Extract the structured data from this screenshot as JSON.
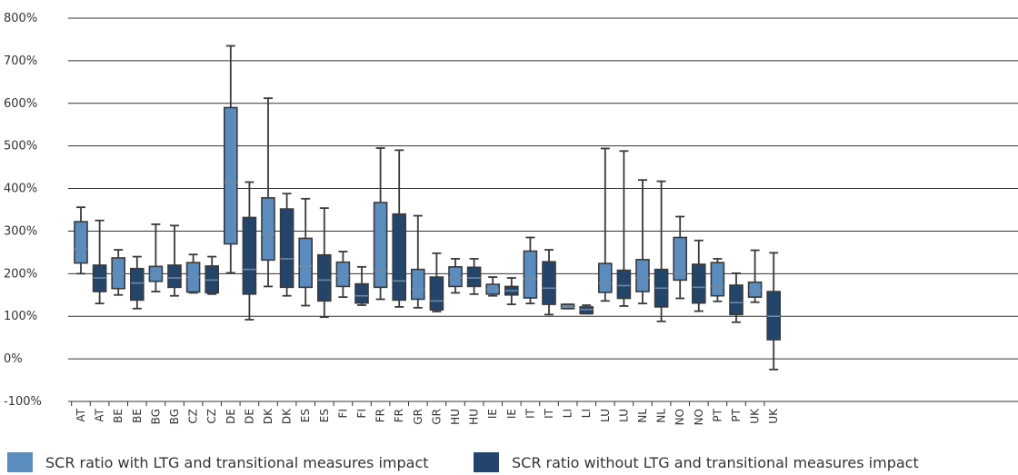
{
  "chart_data": {
    "type": "box",
    "y_tick_labels": [
      "-100%",
      "0%",
      "100%",
      "200%",
      "300%",
      "400%",
      "500%",
      "600%",
      "700%",
      "800%"
    ],
    "ylim": [
      -100,
      800
    ],
    "grid": "horizontal",
    "legend_position": "bottom",
    "colors": {
      "light": "#5b8cc0",
      "dark": "#23456b",
      "outline": "#3a3a3a",
      "grid": "#333333"
    },
    "series": [
      {
        "name": "SCR ratio with LTG and transitional measures impact",
        "color": "light"
      },
      {
        "name": "SCR ratio without LTG and transitional measures impact",
        "color": "dark"
      }
    ],
    "categories": [
      "AT",
      "AT",
      "BE",
      "BE",
      "BG",
      "BG",
      "CZ",
      "CZ",
      "DE",
      "DE",
      "DK",
      "DK",
      "ES",
      "ES",
      "FI",
      "FI",
      "FR",
      "FR",
      "GR",
      "GR",
      "HU",
      "HU",
      "IE",
      "IE",
      "IT",
      "IT",
      "LI",
      "LI",
      "LU",
      "LU",
      "NL",
      "NL",
      "NO",
      "NO",
      "PT",
      "PT",
      "UK",
      "UK"
    ],
    "boxes": [
      {
        "series": 0,
        "min": 200,
        "q1": 225,
        "median": 258,
        "q3": 322,
        "max": 356
      },
      {
        "series": 1,
        "min": 130,
        "q1": 158,
        "median": 190,
        "q3": 220,
        "max": 325
      },
      {
        "series": 0,
        "min": 150,
        "q1": 165,
        "median": 200,
        "q3": 237,
        "max": 256
      },
      {
        "series": 1,
        "min": 118,
        "q1": 138,
        "median": 178,
        "q3": 212,
        "max": 240
      },
      {
        "series": 0,
        "min": 158,
        "q1": 182,
        "median": 196,
        "q3": 217,
        "max": 316
      },
      {
        "series": 1,
        "min": 148,
        "q1": 168,
        "median": 190,
        "q3": 220,
        "max": 313
      },
      {
        "series": 0,
        "min": 155,
        "q1": 157,
        "median": 192,
        "q3": 226,
        "max": 245
      },
      {
        "series": 1,
        "min": 152,
        "q1": 155,
        "median": 185,
        "q3": 218,
        "max": 240
      },
      {
        "series": 0,
        "min": 202,
        "q1": 270,
        "median": 415,
        "q3": 590,
        "max": 735
      },
      {
        "series": 1,
        "min": 92,
        "q1": 152,
        "median": 210,
        "q3": 332,
        "max": 415
      },
      {
        "series": 0,
        "min": 170,
        "q1": 232,
        "median": 292,
        "q3": 378,
        "max": 612
      },
      {
        "series": 1,
        "min": 148,
        "q1": 168,
        "median": 235,
        "q3": 352,
        "max": 388
      },
      {
        "series": 0,
        "min": 125,
        "q1": 168,
        "median": 218,
        "q3": 283,
        "max": 376
      },
      {
        "series": 1,
        "min": 98,
        "q1": 136,
        "median": 185,
        "q3": 244,
        "max": 354
      },
      {
        "series": 0,
        "min": 145,
        "q1": 170,
        "median": 195,
        "q3": 227,
        "max": 252
      },
      {
        "series": 1,
        "min": 126,
        "q1": 131,
        "median": 148,
        "q3": 176,
        "max": 216
      },
      {
        "series": 0,
        "min": 140,
        "q1": 168,
        "median": 208,
        "q3": 367,
        "max": 495
      },
      {
        "series": 1,
        "min": 122,
        "q1": 138,
        "median": 183,
        "q3": 340,
        "max": 490
      },
      {
        "series": 0,
        "min": 120,
        "q1": 140,
        "median": 164,
        "q3": 210,
        "max": 336
      },
      {
        "series": 1,
        "min": 111,
        "q1": 115,
        "median": 136,
        "q3": 192,
        "max": 248
      },
      {
        "series": 0,
        "min": 155,
        "q1": 170,
        "median": 190,
        "q3": 216,
        "max": 235
      },
      {
        "series": 1,
        "min": 152,
        "q1": 170,
        "median": 190,
        "q3": 215,
        "max": 235
      },
      {
        "series": 0,
        "min": 148,
        "q1": 152,
        "median": 163,
        "q3": 175,
        "max": 192
      },
      {
        "series": 1,
        "min": 128,
        "q1": 150,
        "median": 160,
        "q3": 170,
        "max": 190
      },
      {
        "series": 0,
        "min": 130,
        "q1": 143,
        "median": 188,
        "q3": 253,
        "max": 285
      },
      {
        "series": 1,
        "min": 104,
        "q1": 128,
        "median": 166,
        "q3": 228,
        "max": 256
      },
      {
        "series": 0,
        "min": 118,
        "q1": 118,
        "median": 122,
        "q3": 128,
        "max": 128
      },
      {
        "series": 1,
        "min": 106,
        "q1": 106,
        "median": 116,
        "q3": 122,
        "max": 126
      },
      {
        "series": 0,
        "min": 136,
        "q1": 156,
        "median": 178,
        "q3": 224,
        "max": 494
      },
      {
        "series": 1,
        "min": 124,
        "q1": 142,
        "median": 172,
        "q3": 208,
        "max": 488
      },
      {
        "series": 0,
        "min": 130,
        "q1": 158,
        "median": 190,
        "q3": 233,
        "max": 420
      },
      {
        "series": 1,
        "min": 88,
        "q1": 122,
        "median": 166,
        "q3": 210,
        "max": 417
      },
      {
        "series": 0,
        "min": 142,
        "q1": 185,
        "median": 200,
        "q3": 285,
        "max": 334
      },
      {
        "series": 1,
        "min": 112,
        "q1": 131,
        "median": 168,
        "q3": 222,
        "max": 278
      },
      {
        "series": 0,
        "min": 135,
        "q1": 148,
        "median": 170,
        "q3": 226,
        "max": 235
      },
      {
        "series": 1,
        "min": 86,
        "q1": 104,
        "median": 132,
        "q3": 173,
        "max": 201
      },
      {
        "series": 0,
        "min": 133,
        "q1": 145,
        "median": 160,
        "q3": 180,
        "max": 255
      },
      {
        "series": 1,
        "min": -25,
        "q1": 45,
        "median": 100,
        "q3": 158,
        "max": 249
      }
    ]
  }
}
